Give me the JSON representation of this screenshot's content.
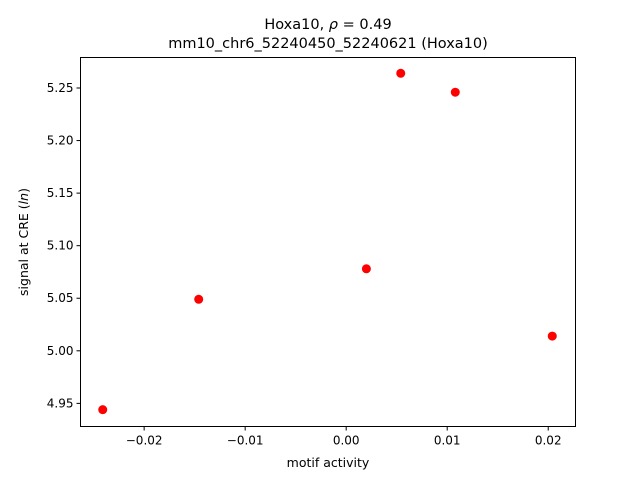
{
  "chart_data": {
    "type": "scatter",
    "title_line1_prefix": "Hoxa10, ",
    "title_line1_rho": "ρ",
    "title_line1_suffix": " = 0.49",
    "title_line2": "mm10_chr6_52240450_52240621 (Hoxa10)",
    "xlabel": "motif activity",
    "ylabel_prefix": "signal at CRE (",
    "ylabel_italic": "ln",
    "ylabel_suffix": ")",
    "xlim": [
      -0.0263,
      0.0227
    ],
    "ylim": [
      4.928,
      5.279
    ],
    "xticks": [
      -0.02,
      -0.01,
      0.0,
      0.01,
      0.02
    ],
    "xtick_labels": [
      "−0.02",
      "−0.01",
      "0.00",
      "0.01",
      "0.02"
    ],
    "yticks": [
      4.95,
      5.0,
      5.05,
      5.1,
      5.15,
      5.2,
      5.25
    ],
    "ytick_labels": [
      "4.95",
      "5.00",
      "5.05",
      "5.10",
      "5.15",
      "5.20",
      "5.25"
    ],
    "grid": false,
    "marker_color": "#ff0000",
    "points": [
      {
        "x": -0.0241,
        "y": 4.944
      },
      {
        "x": -0.0146,
        "y": 5.049
      },
      {
        "x": 0.002,
        "y": 5.078
      },
      {
        "x": 0.0054,
        "y": 5.264
      },
      {
        "x": 0.0108,
        "y": 5.246
      },
      {
        "x": 0.0204,
        "y": 5.014
      }
    ]
  }
}
